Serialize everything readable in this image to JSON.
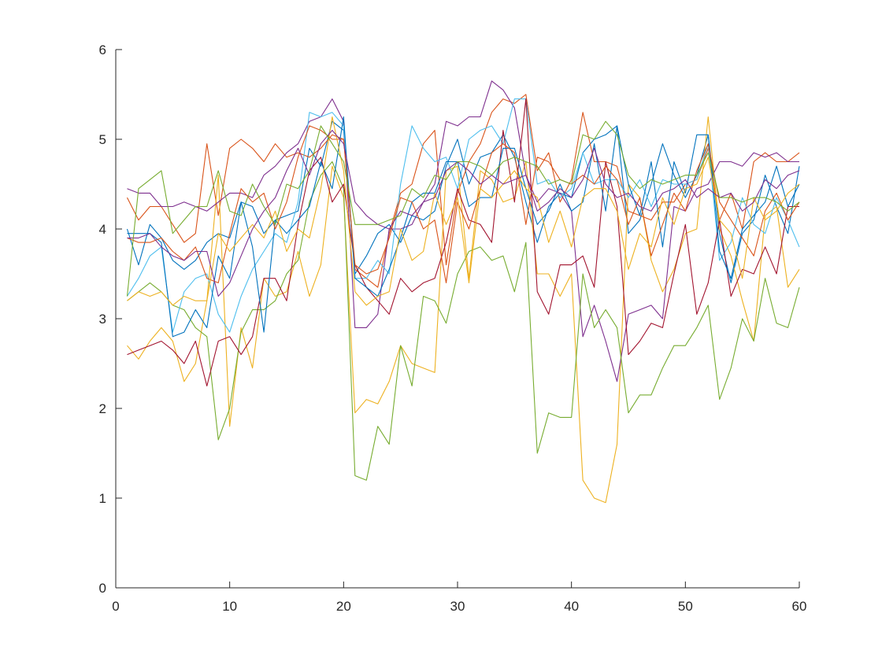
{
  "chart_data": {
    "type": "line",
    "title": "",
    "xlabel": "",
    "ylabel": "",
    "xlim": [
      0,
      60
    ],
    "ylim": [
      0,
      6
    ],
    "grid": false,
    "legend": "none",
    "x_ticks": [
      0,
      10,
      20,
      30,
      40,
      50,
      60
    ],
    "y_ticks": [
      0,
      1,
      2,
      3,
      4,
      5,
      6
    ],
    "x": [
      1,
      2,
      3,
      4,
      5,
      6,
      7,
      8,
      9,
      10,
      11,
      12,
      13,
      14,
      15,
      16,
      17,
      18,
      19,
      20,
      21,
      22,
      23,
      24,
      25,
      26,
      27,
      28,
      29,
      30,
      31,
      32,
      33,
      34,
      35,
      36,
      37,
      38,
      39,
      40,
      41,
      42,
      43,
      44,
      45,
      46,
      47,
      48,
      49,
      50,
      51,
      52,
      53,
      54,
      55,
      56,
      57,
      58,
      59,
      60
    ],
    "series": [
      {
        "color": "#0072bd",
        "values": [
          4.0,
          3.6,
          4.05,
          3.9,
          3.65,
          3.55,
          3.65,
          3.85,
          3.95,
          3.9,
          4.3,
          4.25,
          3.95,
          4.1,
          4.15,
          4.2,
          4.9,
          4.7,
          5.2,
          5.1,
          3.5,
          3.7,
          3.95,
          4.05,
          3.85,
          4.15,
          4.1,
          4.2,
          4.7,
          5.0,
          4.5,
          4.8,
          4.85,
          5.05,
          4.8,
          4.3,
          3.85,
          4.25,
          4.4,
          4.35,
          4.85,
          5.0,
          5.05,
          5.15,
          3.95,
          4.1,
          4.5,
          4.95,
          4.6,
          4.35,
          4.6,
          5.05,
          3.95,
          3.4,
          3.95,
          4.1,
          4.6,
          4.25,
          3.95,
          4.7
        ]
      },
      {
        "color": "#d95319",
        "values": [
          4.35,
          4.1,
          4.25,
          4.25,
          4.05,
          3.85,
          3.95,
          4.95,
          4.15,
          4.9,
          5.0,
          4.9,
          4.75,
          4.95,
          4.8,
          4.85,
          4.8,
          4.9,
          5.05,
          5.0,
          3.55,
          3.45,
          3.35,
          3.95,
          4.4,
          4.5,
          4.95,
          5.1,
          3.6,
          4.4,
          4.75,
          4.95,
          5.3,
          5.45,
          5.4,
          5.5,
          4.65,
          4.85,
          4.3,
          4.55,
          5.3,
          4.75,
          4.75,
          4.7,
          4.2,
          4.15,
          4.1,
          4.3,
          4.3,
          4.5,
          4.55,
          4.9,
          4.1,
          4.4,
          4.0,
          4.75,
          4.85,
          4.75,
          4.75,
          4.85
        ]
      },
      {
        "color": "#edb120",
        "values": [
          2.7,
          2.55,
          2.75,
          2.9,
          2.75,
          2.3,
          2.5,
          3.2,
          4.6,
          1.8,
          2.9,
          2.45,
          3.45,
          3.25,
          3.3,
          3.75,
          3.25,
          3.6,
          4.7,
          4.35,
          1.95,
          2.1,
          2.05,
          2.3,
          2.7,
          2.5,
          2.45,
          2.4,
          4.65,
          4.7,
          3.45,
          4.65,
          4.55,
          4.3,
          4.35,
          4.75,
          3.5,
          3.5,
          3.25,
          3.5,
          1.2,
          1.0,
          0.95,
          1.6,
          4.5,
          4.35,
          3.65,
          3.3,
          3.55,
          3.95,
          4.0,
          5.25,
          4.0,
          3.7,
          3.2,
          2.75,
          4.15,
          4.25,
          3.35,
          3.55
        ]
      },
      {
        "color": "#7e2f8e",
        "values": [
          4.45,
          4.4,
          4.4,
          4.25,
          4.25,
          4.3,
          4.25,
          4.2,
          4.3,
          4.4,
          4.4,
          4.35,
          4.6,
          4.7,
          4.85,
          4.95,
          5.2,
          5.25,
          5.45,
          5.2,
          2.9,
          2.9,
          3.05,
          4.0,
          4.0,
          4.05,
          4.3,
          4.5,
          5.2,
          5.15,
          5.25,
          5.25,
          5.65,
          5.55,
          5.35,
          4.6,
          4.3,
          4.45,
          4.4,
          4.2,
          2.8,
          3.15,
          2.75,
          2.3,
          3.05,
          3.1,
          3.15,
          3.0,
          4.25,
          4.2,
          4.45,
          4.5,
          4.75,
          4.75,
          4.7,
          4.85,
          4.8,
          4.85,
          4.75,
          4.75
        ]
      },
      {
        "color": "#77ac30",
        "values": [
          3.2,
          3.3,
          3.4,
          3.3,
          3.15,
          3.1,
          2.9,
          2.8,
          1.65,
          2.0,
          2.85,
          3.1,
          3.1,
          3.2,
          3.5,
          3.65,
          4.3,
          4.6,
          4.75,
          4.45,
          1.25,
          1.2,
          1.8,
          1.6,
          2.7,
          2.25,
          3.25,
          3.2,
          2.95,
          3.5,
          3.75,
          3.8,
          3.65,
          3.7,
          3.3,
          3.85,
          1.5,
          1.95,
          1.9,
          1.9,
          3.5,
          2.9,
          3.1,
          2.9,
          1.95,
          2.15,
          2.15,
          2.45,
          2.7,
          2.7,
          2.9,
          3.15,
          2.1,
          2.45,
          3.0,
          2.75,
          3.45,
          2.95,
          2.9,
          3.35
        ]
      },
      {
        "color": "#4dbeee",
        "values": [
          3.25,
          3.45,
          3.7,
          3.8,
          2.85,
          3.3,
          3.45,
          3.5,
          3.05,
          2.85,
          3.25,
          3.55,
          3.75,
          3.95,
          3.85,
          4.3,
          5.3,
          5.25,
          5.3,
          5.15,
          3.45,
          3.45,
          3.65,
          3.5,
          4.5,
          5.15,
          4.9,
          4.75,
          4.8,
          4.45,
          5.0,
          5.1,
          5.15,
          4.95,
          5.45,
          5.45,
          4.5,
          4.55,
          4.35,
          4.45,
          4.85,
          4.5,
          4.55,
          4.55,
          4.35,
          4.55,
          4.25,
          4.55,
          4.5,
          4.5,
          4.55,
          4.95,
          3.65,
          3.85,
          4.35,
          4.05,
          3.95,
          4.35,
          4.1,
          3.8
        ]
      },
      {
        "color": "#a2142f",
        "values": [
          2.6,
          2.65,
          2.7,
          2.75,
          2.65,
          2.5,
          2.75,
          2.25,
          2.75,
          2.8,
          2.6,
          2.8,
          3.45,
          3.45,
          3.2,
          4.05,
          4.65,
          4.8,
          4.3,
          4.5,
          3.6,
          3.35,
          3.2,
          3.05,
          3.45,
          3.3,
          3.4,
          3.45,
          3.85,
          4.45,
          4.1,
          4.05,
          3.85,
          5.1,
          4.3,
          5.45,
          3.3,
          3.05,
          3.6,
          3.6,
          3.7,
          3.35,
          4.75,
          4.25,
          2.6,
          2.75,
          2.95,
          2.9,
          3.5,
          4.05,
          3.05,
          3.4,
          4.1,
          3.25,
          3.55,
          3.5,
          3.8,
          3.5,
          4.25,
          4.25
        ]
      },
      {
        "color": "#0072bd",
        "values": [
          3.95,
          3.95,
          3.95,
          3.85,
          2.8,
          2.85,
          3.1,
          2.9,
          3.7,
          3.45,
          4.3,
          3.8,
          2.85,
          4.1,
          3.95,
          4.1,
          4.25,
          4.75,
          4.45,
          5.25,
          3.45,
          3.35,
          3.25,
          3.55,
          3.9,
          4.3,
          4.4,
          4.4,
          4.75,
          4.75,
          4.25,
          4.35,
          4.35,
          4.9,
          4.9,
          4.45,
          4.05,
          4.2,
          4.5,
          4.2,
          4.3,
          4.95,
          4.2,
          5.15,
          4.5,
          4.15,
          4.75,
          3.8,
          4.75,
          4.4,
          5.05,
          5.05,
          3.75,
          3.45,
          4.0,
          4.15,
          4.3,
          4.7,
          4.25,
          4.5
        ]
      },
      {
        "color": "#d95319",
        "values": [
          3.9,
          3.85,
          3.85,
          3.9,
          3.75,
          3.65,
          3.8,
          3.45,
          3.4,
          3.95,
          4.45,
          4.3,
          4.4,
          4.0,
          4.3,
          4.8,
          5.15,
          5.1,
          5.0,
          5.0,
          3.6,
          3.5,
          3.55,
          3.9,
          4.35,
          4.3,
          4.0,
          4.1,
          3.4,
          4.3,
          4.0,
          4.45,
          4.85,
          4.95,
          4.85,
          4.05,
          4.8,
          4.75,
          4.55,
          4.5,
          4.6,
          4.5,
          4.7,
          4.55,
          4.05,
          4.35,
          3.7,
          4.05,
          4.4,
          4.2,
          4.65,
          4.95,
          4.3,
          4.1,
          3.9,
          3.7,
          4.2,
          4.4,
          4.1,
          4.3
        ]
      },
      {
        "color": "#edb120",
        "values": [
          3.2,
          3.3,
          3.25,
          3.3,
          3.15,
          3.25,
          3.2,
          3.2,
          3.95,
          3.75,
          3.9,
          4.05,
          3.9,
          4.2,
          3.75,
          4.0,
          3.9,
          4.45,
          5.25,
          4.65,
          3.3,
          3.15,
          3.25,
          3.3,
          4.0,
          3.65,
          3.75,
          4.4,
          4.05,
          4.35,
          3.4,
          4.45,
          4.35,
          4.5,
          4.65,
          4.45,
          4.35,
          3.85,
          4.2,
          3.8,
          4.35,
          4.45,
          4.45,
          4.2,
          3.55,
          3.95,
          3.8,
          4.35,
          4.05,
          4.45,
          4.5,
          4.8,
          4.1,
          3.95,
          3.45,
          4.35,
          4.1,
          4.2,
          4.4,
          4.5
        ]
      },
      {
        "color": "#7e2f8e",
        "values": [
          3.9,
          3.9,
          3.95,
          3.8,
          3.7,
          3.65,
          3.75,
          3.75,
          3.25,
          3.4,
          3.7,
          4.0,
          4.2,
          4.35,
          4.65,
          4.9,
          4.6,
          4.95,
          5.1,
          4.95,
          4.3,
          4.15,
          4.05,
          4.0,
          4.2,
          4.15,
          4.3,
          4.35,
          4.65,
          4.75,
          4.65,
          4.5,
          4.6,
          4.5,
          4.55,
          4.6,
          4.2,
          4.3,
          4.45,
          4.35,
          4.55,
          4.9,
          4.5,
          4.35,
          4.4,
          4.25,
          4.2,
          4.4,
          4.45,
          4.55,
          4.35,
          4.45,
          4.35,
          4.4,
          4.2,
          4.3,
          4.55,
          4.45,
          4.6,
          4.65
        ]
      },
      {
        "color": "#77ac30",
        "values": [
          3.25,
          4.45,
          4.55,
          4.65,
          3.95,
          4.1,
          4.25,
          4.25,
          4.65,
          4.2,
          4.15,
          4.5,
          4.25,
          4.05,
          4.5,
          4.45,
          4.65,
          5.15,
          4.95,
          4.75,
          4.05,
          4.05,
          4.05,
          4.1,
          4.15,
          4.45,
          4.35,
          4.6,
          4.55,
          4.75,
          4.75,
          4.7,
          4.6,
          4.75,
          4.8,
          4.75,
          4.7,
          4.5,
          4.55,
          4.5,
          5.05,
          5.0,
          5.2,
          5.05,
          4.6,
          4.45,
          4.55,
          4.5,
          4.55,
          4.6,
          4.6,
          4.85,
          4.35,
          4.35,
          4.3,
          4.35,
          4.35,
          4.3,
          4.2,
          4.3
        ]
      }
    ]
  }
}
